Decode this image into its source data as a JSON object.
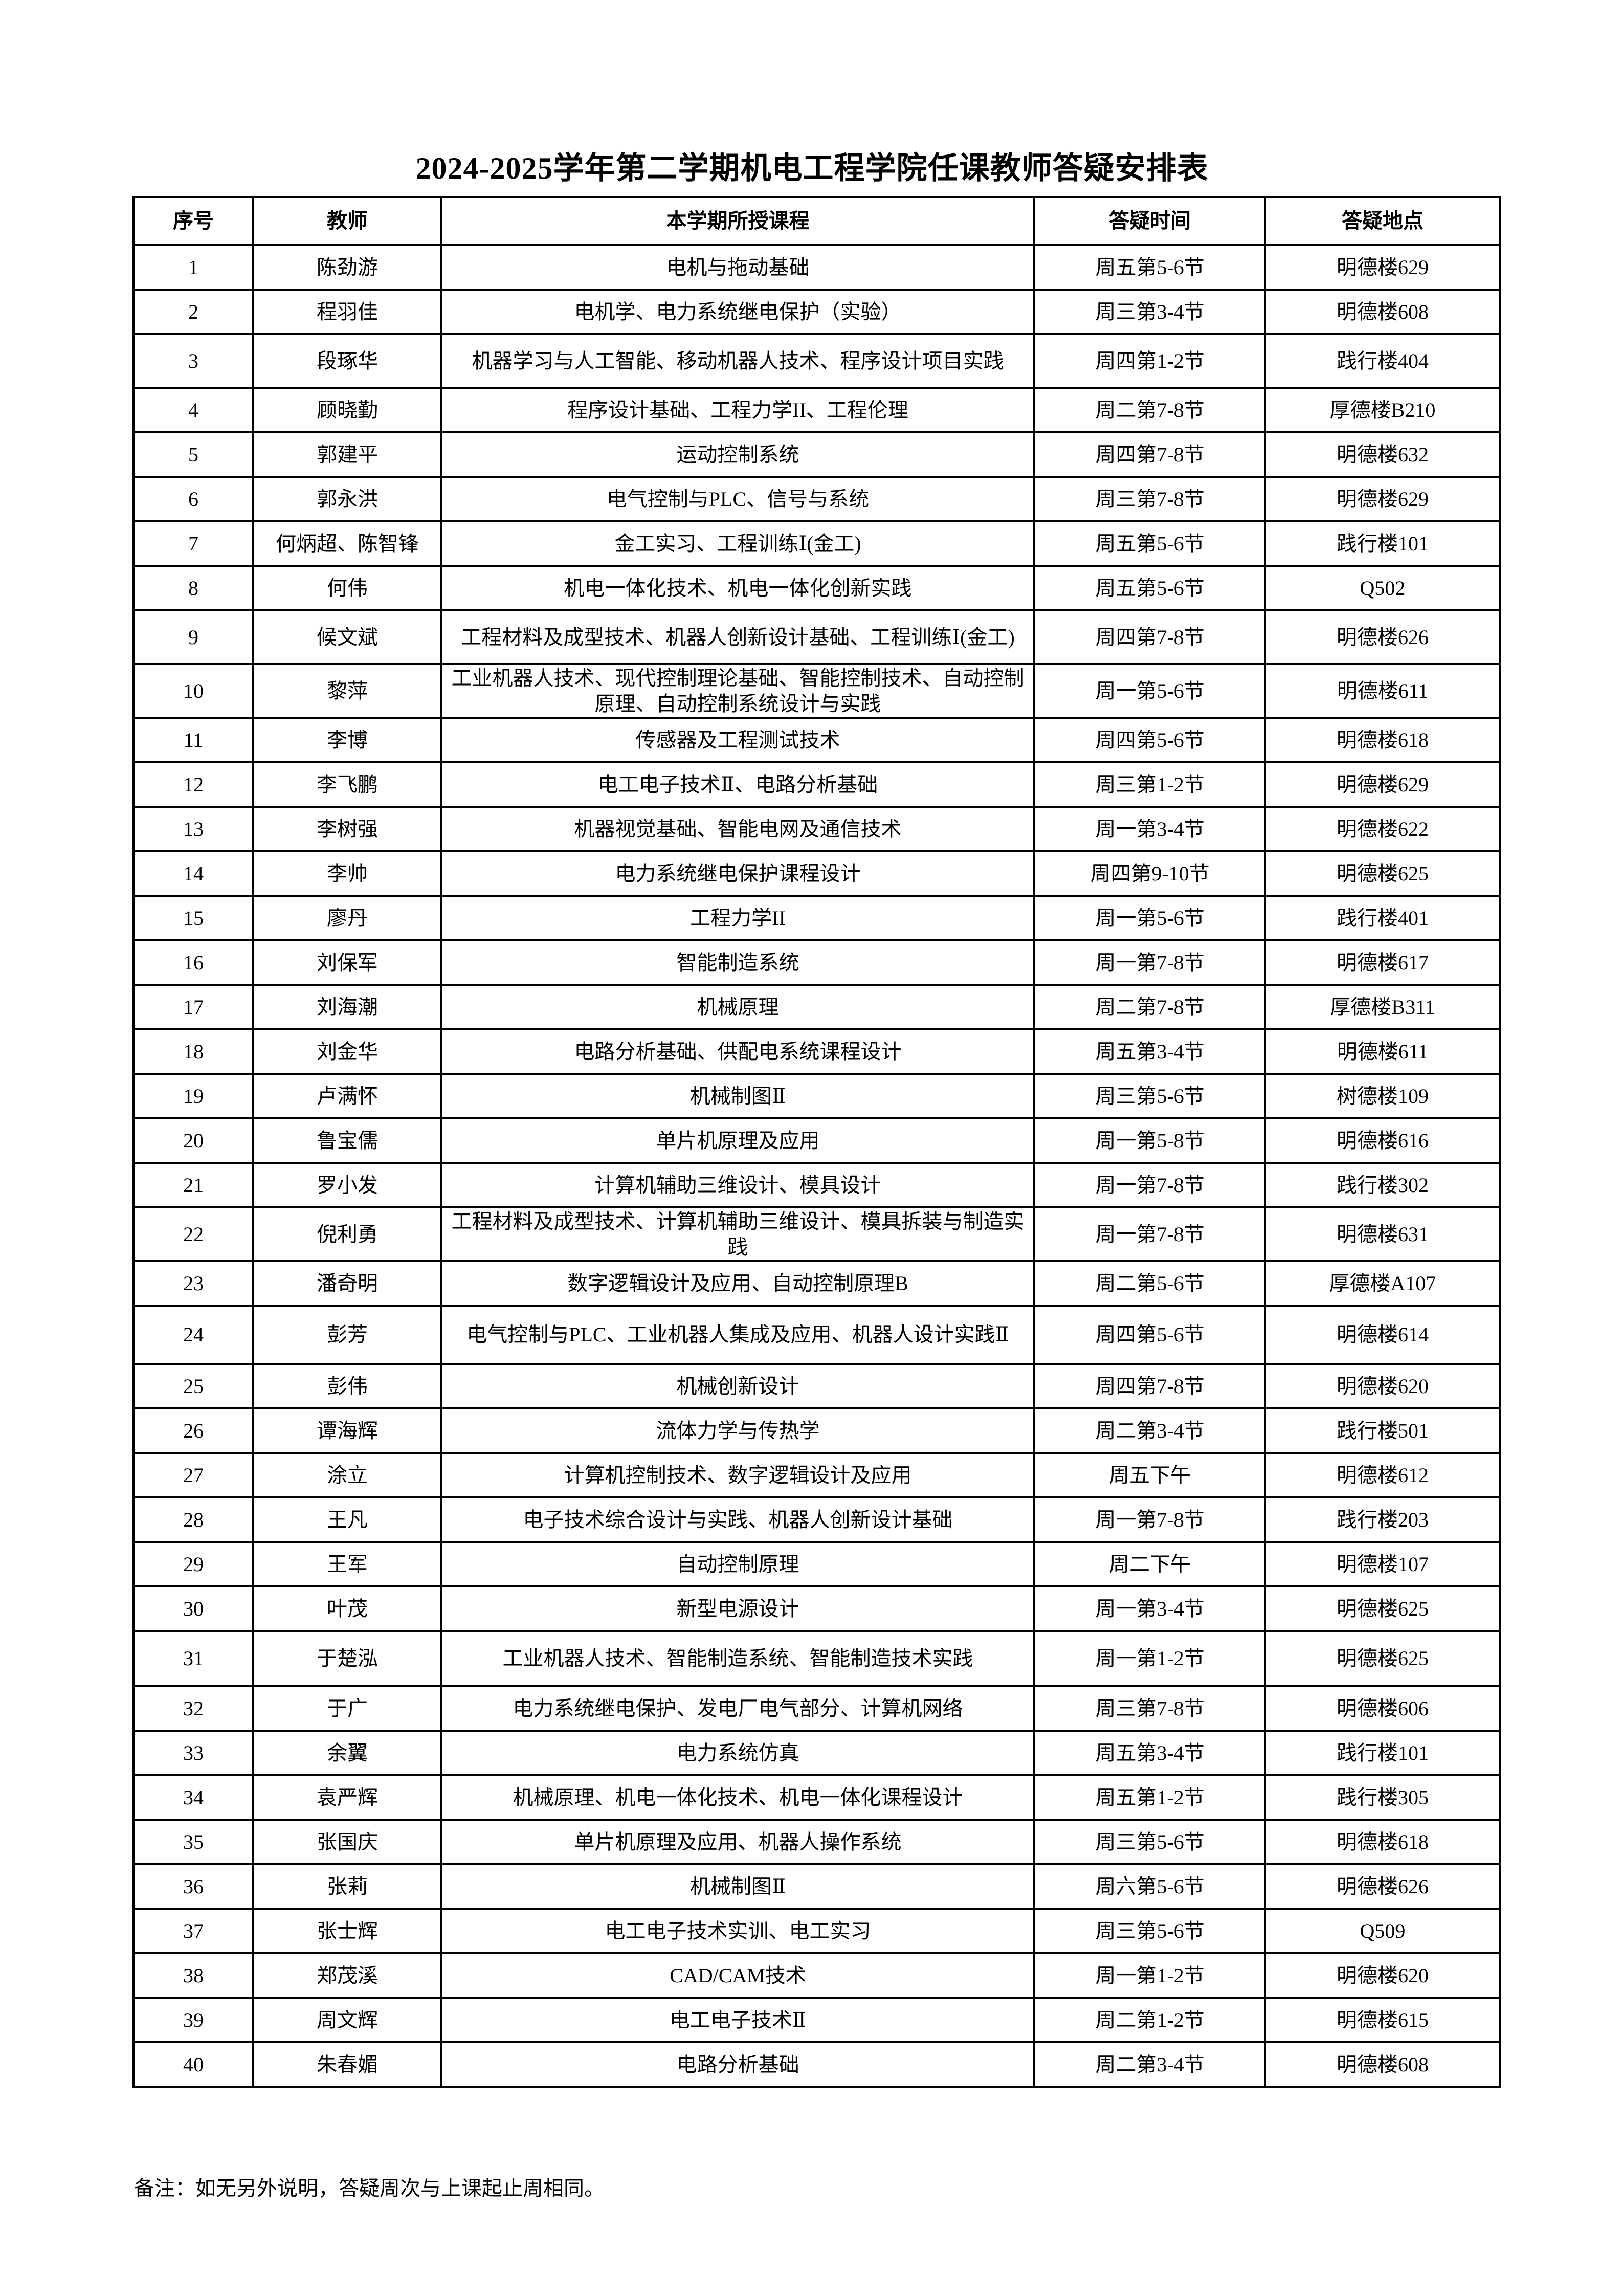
{
  "title": "2024-2025学年第二学期机电工程学院任课教师答疑安排表",
  "table": {
    "headers": [
      "序号",
      "教师",
      "本学期所授课程",
      "答疑时间",
      "答疑地点"
    ],
    "rows": [
      [
        "1",
        "陈劲游",
        "电机与拖动基础",
        "周五第5-6节",
        "明德楼629"
      ],
      [
        "2",
        "程羽佳",
        "电机学、电力系统继电保护（实验）",
        "周三第3-4节",
        "明德楼608"
      ],
      [
        "3",
        "段琢华",
        "机器学习与人工智能、移动机器人技术、程序设计项目实践",
        "周四第1-2节",
        "践行楼404"
      ],
      [
        "4",
        "顾晓勤",
        "程序设计基础、工程力学II、工程伦理",
        "周二第7-8节",
        "厚德楼B210"
      ],
      [
        "5",
        "郭建平",
        "运动控制系统",
        "周四第7-8节",
        "明德楼632"
      ],
      [
        "6",
        "郭永洪",
        "电气控制与PLC、信号与系统",
        "周三第7-8节",
        "明德楼629"
      ],
      [
        "7",
        "何炳超、陈智锋",
        "金工实习、工程训练Ⅰ(金工)",
        "周五第5-6节",
        "践行楼101"
      ],
      [
        "8",
        "何伟",
        "机电一体化技术、机电一体化创新实践",
        "周五第5-6节",
        "Q502"
      ],
      [
        "9",
        "候文斌",
        "工程材料及成型技术、机器人创新设计基础、工程训练Ⅰ(金工)",
        "周四第7-8节",
        "明德楼626"
      ],
      [
        "10",
        "黎萍",
        "工业机器人技术、现代控制理论基础、智能控制技术、自动控制原理、自动控制系统设计与实践",
        "周一第5-6节",
        "明德楼611"
      ],
      [
        "11",
        "李博",
        "传感器及工程测试技术",
        "周四第5-6节",
        "明德楼618"
      ],
      [
        "12",
        "李飞鹏",
        "电工电子技术Ⅱ、电路分析基础",
        "周三第1-2节",
        "明德楼629"
      ],
      [
        "13",
        "李树强",
        "机器视觉基础、智能电网及通信技术",
        "周一第3-4节",
        "明德楼622"
      ],
      [
        "14",
        "李帅",
        "电力系统继电保护课程设计",
        "周四第9-10节",
        "明德楼625"
      ],
      [
        "15",
        "廖丹",
        "工程力学II",
        "周一第5-6节",
        "践行楼401"
      ],
      [
        "16",
        "刘保军",
        "智能制造系统",
        "周一第7-8节",
        "明德楼617"
      ],
      [
        "17",
        "刘海潮",
        "机械原理",
        "周二第7-8节",
        "厚德楼B311"
      ],
      [
        "18",
        "刘金华",
        "电路分析基础、供配电系统课程设计",
        "周五第3-4节",
        "明德楼611"
      ],
      [
        "19",
        "卢满怀",
        "机械制图Ⅱ",
        "周三第5-6节",
        "树德楼109"
      ],
      [
        "20",
        "鲁宝儒",
        "单片机原理及应用",
        "周一第5-8节",
        "明德楼616"
      ],
      [
        "21",
        "罗小发",
        "计算机辅助三维设计、模具设计",
        "周一第7-8节",
        "践行楼302"
      ],
      [
        "22",
        "倪利勇",
        "工程材料及成型技术、计算机辅助三维设计、模具拆装与制造实践",
        "周一第7-8节",
        "明德楼631"
      ],
      [
        "23",
        "潘奇明",
        "数字逻辑设计及应用、自动控制原理B",
        "周二第5-6节",
        "厚德楼A107"
      ],
      [
        "24",
        "彭芳",
        "电气控制与PLC、工业机器人集成及应用、机器人设计实践Ⅱ",
        "周四第5-6节",
        "明德楼614"
      ],
      [
        "25",
        "彭伟",
        "机械创新设计",
        "周四第7-8节",
        "明德楼620"
      ],
      [
        "26",
        "谭海辉",
        "流体力学与传热学",
        "周二第3-4节",
        "践行楼501"
      ],
      [
        "27",
        "涂立",
        "计算机控制技术、数字逻辑设计及应用",
        "周五下午",
        "明德楼612"
      ],
      [
        "28",
        "王凡",
        "电子技术综合设计与实践、机器人创新设计基础",
        "周一第7-8节",
        "践行楼203"
      ],
      [
        "29",
        "王军",
        "自动控制原理",
        "周二下午",
        "明德楼107"
      ],
      [
        "30",
        "叶茂",
        "新型电源设计",
        "周一第3-4节",
        "明德楼625"
      ],
      [
        "31",
        "于楚泓",
        "工业机器人技术、智能制造系统、智能制造技术实践",
        "周一第1-2节",
        "明德楼625"
      ],
      [
        "32",
        "于广",
        "电力系统继电保护、发电厂电气部分、计算机网络",
        "周三第7-8节",
        "明德楼606"
      ],
      [
        "33",
        "余翼",
        "电力系统仿真",
        "周五第3-4节",
        "践行楼101"
      ],
      [
        "34",
        "袁严辉",
        "机械原理、机电一体化技术、机电一体化课程设计",
        "周五第1-2节",
        "践行楼305"
      ],
      [
        "35",
        "张国庆",
        "单片机原理及应用、机器人操作系统",
        "周三第5-6节",
        "明德楼618"
      ],
      [
        "36",
        "张莉",
        "机械制图Ⅱ",
        "周六第5-6节",
        "明德楼626"
      ],
      [
        "37",
        "张士辉",
        "电工电子技术实训、电工实习",
        "周三第5-6节",
        "Q509"
      ],
      [
        "38",
        "郑茂溪",
        "CAD/CAM技术",
        "周一第1-2节",
        "明德楼620"
      ],
      [
        "39",
        "周文辉",
        "电工电子技术Ⅱ",
        "周二第1-2节",
        "明德楼615"
      ],
      [
        "40",
        "朱春媚",
        "电路分析基础",
        "周二第3-4节",
        "明德楼608"
      ]
    ]
  },
  "note": "备注：如无另外说明，答疑周次与上课起止周相同。"
}
